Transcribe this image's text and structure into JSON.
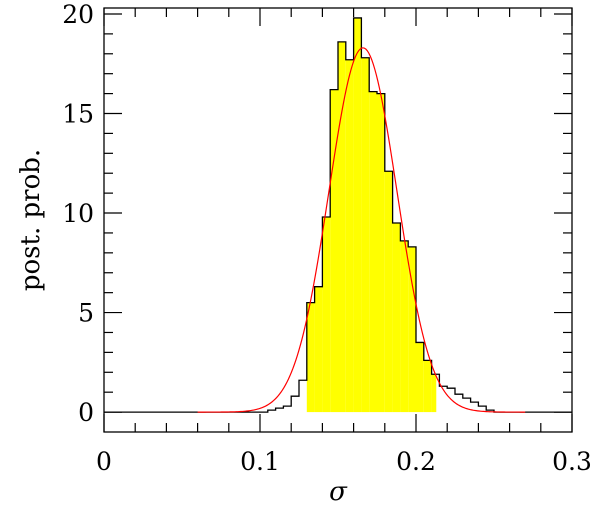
{
  "chart_data": {
    "type": "bar",
    "title": "",
    "xlabel": "σ",
    "ylabel": "post. prob.",
    "xlim": [
      0,
      0.3
    ],
    "ylim": [
      -1,
      20.3
    ],
    "x_ticks": [
      0,
      0.1,
      0.2,
      0.3
    ],
    "x_tick_labels": [
      "0",
      "0.1",
      "0.2",
      "0.3"
    ],
    "y_ticks": [
      0,
      5,
      10,
      15,
      20
    ],
    "y_tick_labels": [
      "0",
      "5",
      "10",
      "15",
      "20"
    ],
    "x_minor_step": 0.02,
    "y_minor_step": 1,
    "grid": false,
    "colors": {
      "histogram_line": "#000000",
      "credible_fill": "#ffff00",
      "fit_curve": "#ff0000"
    },
    "histogram": {
      "bin_width": 0.005,
      "bins_start": [
        0.105,
        0.11,
        0.115,
        0.12,
        0.125,
        0.13,
        0.135,
        0.14,
        0.145,
        0.15,
        0.155,
        0.16,
        0.165,
        0.17,
        0.175,
        0.18,
        0.185,
        0.19,
        0.195,
        0.2,
        0.205,
        0.21,
        0.215,
        0.22,
        0.225,
        0.23,
        0.235,
        0.24,
        0.245
      ],
      "values": [
        0.1,
        0.2,
        0.3,
        0.8,
        1.6,
        5.5,
        6.3,
        9.8,
        16.2,
        18.6,
        17.7,
        19.8,
        17.8,
        16.1,
        16.0,
        12.1,
        9.5,
        8.6,
        8.3,
        3.5,
        2.6,
        1.9,
        1.3,
        1.2,
        0.9,
        0.7,
        0.5,
        0.3,
        0.1
      ]
    },
    "credible_interval": [
      0.13,
      0.213
    ],
    "fit": {
      "mean": 0.166,
      "sd": 0.0218,
      "peak": 18.3,
      "range": [
        0.06,
        0.27
      ]
    }
  }
}
